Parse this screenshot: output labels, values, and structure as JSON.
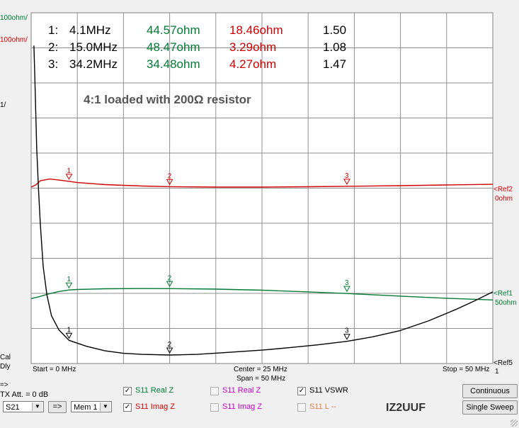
{
  "markers_table": {
    "rows": [
      {
        "num": "1:",
        "freq": "4.1MHz",
        "real": "44.57ohm",
        "imag": "18.46ohm",
        "vswr": "1.50"
      },
      {
        "num": "2:",
        "freq": "15.0MHz",
        "real": "48.47ohm",
        "imag": "3.29ohm",
        "vswr": "1.08"
      },
      {
        "num": "3:",
        "freq": "34.2MHz",
        "real": "34.48ohm",
        "imag": "4.27ohm",
        "vswr": "1.47"
      }
    ]
  },
  "annotation": "4:1 loaded with 200Ω resistor",
  "left_labels": {
    "top_green": "100ohm/",
    "top_red": "100ohm/",
    "top_black": "1/",
    "cal": "Cal",
    "dly": "Dly"
  },
  "right_labels": {
    "ref2": "<Ref2",
    "ref2_val": "0ohm",
    "ref1": "<Ref1",
    "ref1_val": "50ohm",
    "ref5": "<Ref5",
    "ref5_val": "1"
  },
  "bottom_axis": {
    "start": "Start = 0 MHz",
    "center": "Center = 25 MHz",
    "span": "Span = 50 MHz",
    "stop": "Stop = 50 MHz"
  },
  "controls": {
    "arrow_label": "=>",
    "tx_att": "TX Att. = 0 dB",
    "s_param": "S21",
    "go_button": "=>",
    "memory": "Mem 1",
    "trace_toggles": [
      {
        "label": "S11  Real Z",
        "checked": true,
        "color": "#007a33"
      },
      {
        "label": "S11  Imag Z",
        "checked": true,
        "color": "#d00000"
      },
      {
        "label": "S11  Real Z",
        "checked": false,
        "color": "#c000c0"
      },
      {
        "label": "S11  Imag Z",
        "checked": false,
        "color": "#c000c0"
      },
      {
        "label": "S11  VSWR",
        "checked": true,
        "color": "#000000"
      },
      {
        "label": "S11  L --",
        "checked": false,
        "color": "#e08050"
      }
    ],
    "continuous": "Continuous",
    "single_sweep": "Single Sweep",
    "callsign": "IZ2UUF"
  },
  "chart_data": {
    "type": "line",
    "xlabel": "",
    "ylabel": "",
    "x_unit": "MHz",
    "xlim": [
      0,
      50
    ],
    "grid": true,
    "series": [
      {
        "name": "S11 Real Z",
        "color": "#007a33",
        "unit": "ohm",
        "scale_per_div": 100,
        "ref_value": 50,
        "x": [
          0,
          0.8,
          2,
          3,
          4.1,
          5,
          8,
          12,
          15,
          20,
          25,
          30,
          34.2,
          40,
          45,
          50
        ],
        "y": [
          20,
          25,
          34,
          40,
          44.57,
          46,
          48,
          48.5,
          48.47,
          47,
          44,
          39,
          34.48,
          27,
          21,
          16
        ]
      },
      {
        "name": "S11 Imag Z",
        "color": "#d00000",
        "unit": "ohm",
        "scale_per_div": 100,
        "ref_value": 0,
        "x": [
          0,
          0.5,
          1,
          2,
          3,
          4.1,
          5,
          8,
          12,
          15,
          20,
          25,
          30,
          34.2,
          40,
          45,
          50
        ],
        "y": [
          2,
          8,
          20,
          25,
          22,
          18.46,
          15,
          9,
          5,
          3.29,
          2,
          2,
          3,
          4.27,
          6,
          8,
          10
        ]
      },
      {
        "name": "S11 VSWR",
        "color": "#000000",
        "unit": "",
        "scale_per_div": 1,
        "ref_value": 1,
        "x": [
          0.3,
          0.4,
          0.5,
          0.6,
          0.8,
          1,
          1.3,
          1.7,
          2.2,
          3,
          4.1,
          6,
          8,
          10,
          12,
          15,
          18,
          21,
          25,
          28,
          31,
          34.2,
          37,
          40,
          43,
          46,
          48,
          50
        ],
        "y": [
          9.9,
          9.0,
          8.0,
          7.0,
          5.8,
          4.8,
          3.6,
          2.8,
          2.2,
          1.8,
          1.5,
          1.33,
          1.2,
          1.13,
          1.1,
          1.08,
          1.1,
          1.15,
          1.22,
          1.29,
          1.37,
          1.47,
          1.6,
          1.78,
          2.05,
          2.38,
          2.62,
          2.88
        ]
      }
    ],
    "markers": [
      {
        "id": "1",
        "x": 4.1
      },
      {
        "id": "2",
        "x": 15.0
      },
      {
        "id": "3",
        "x": 34.2
      }
    ]
  }
}
